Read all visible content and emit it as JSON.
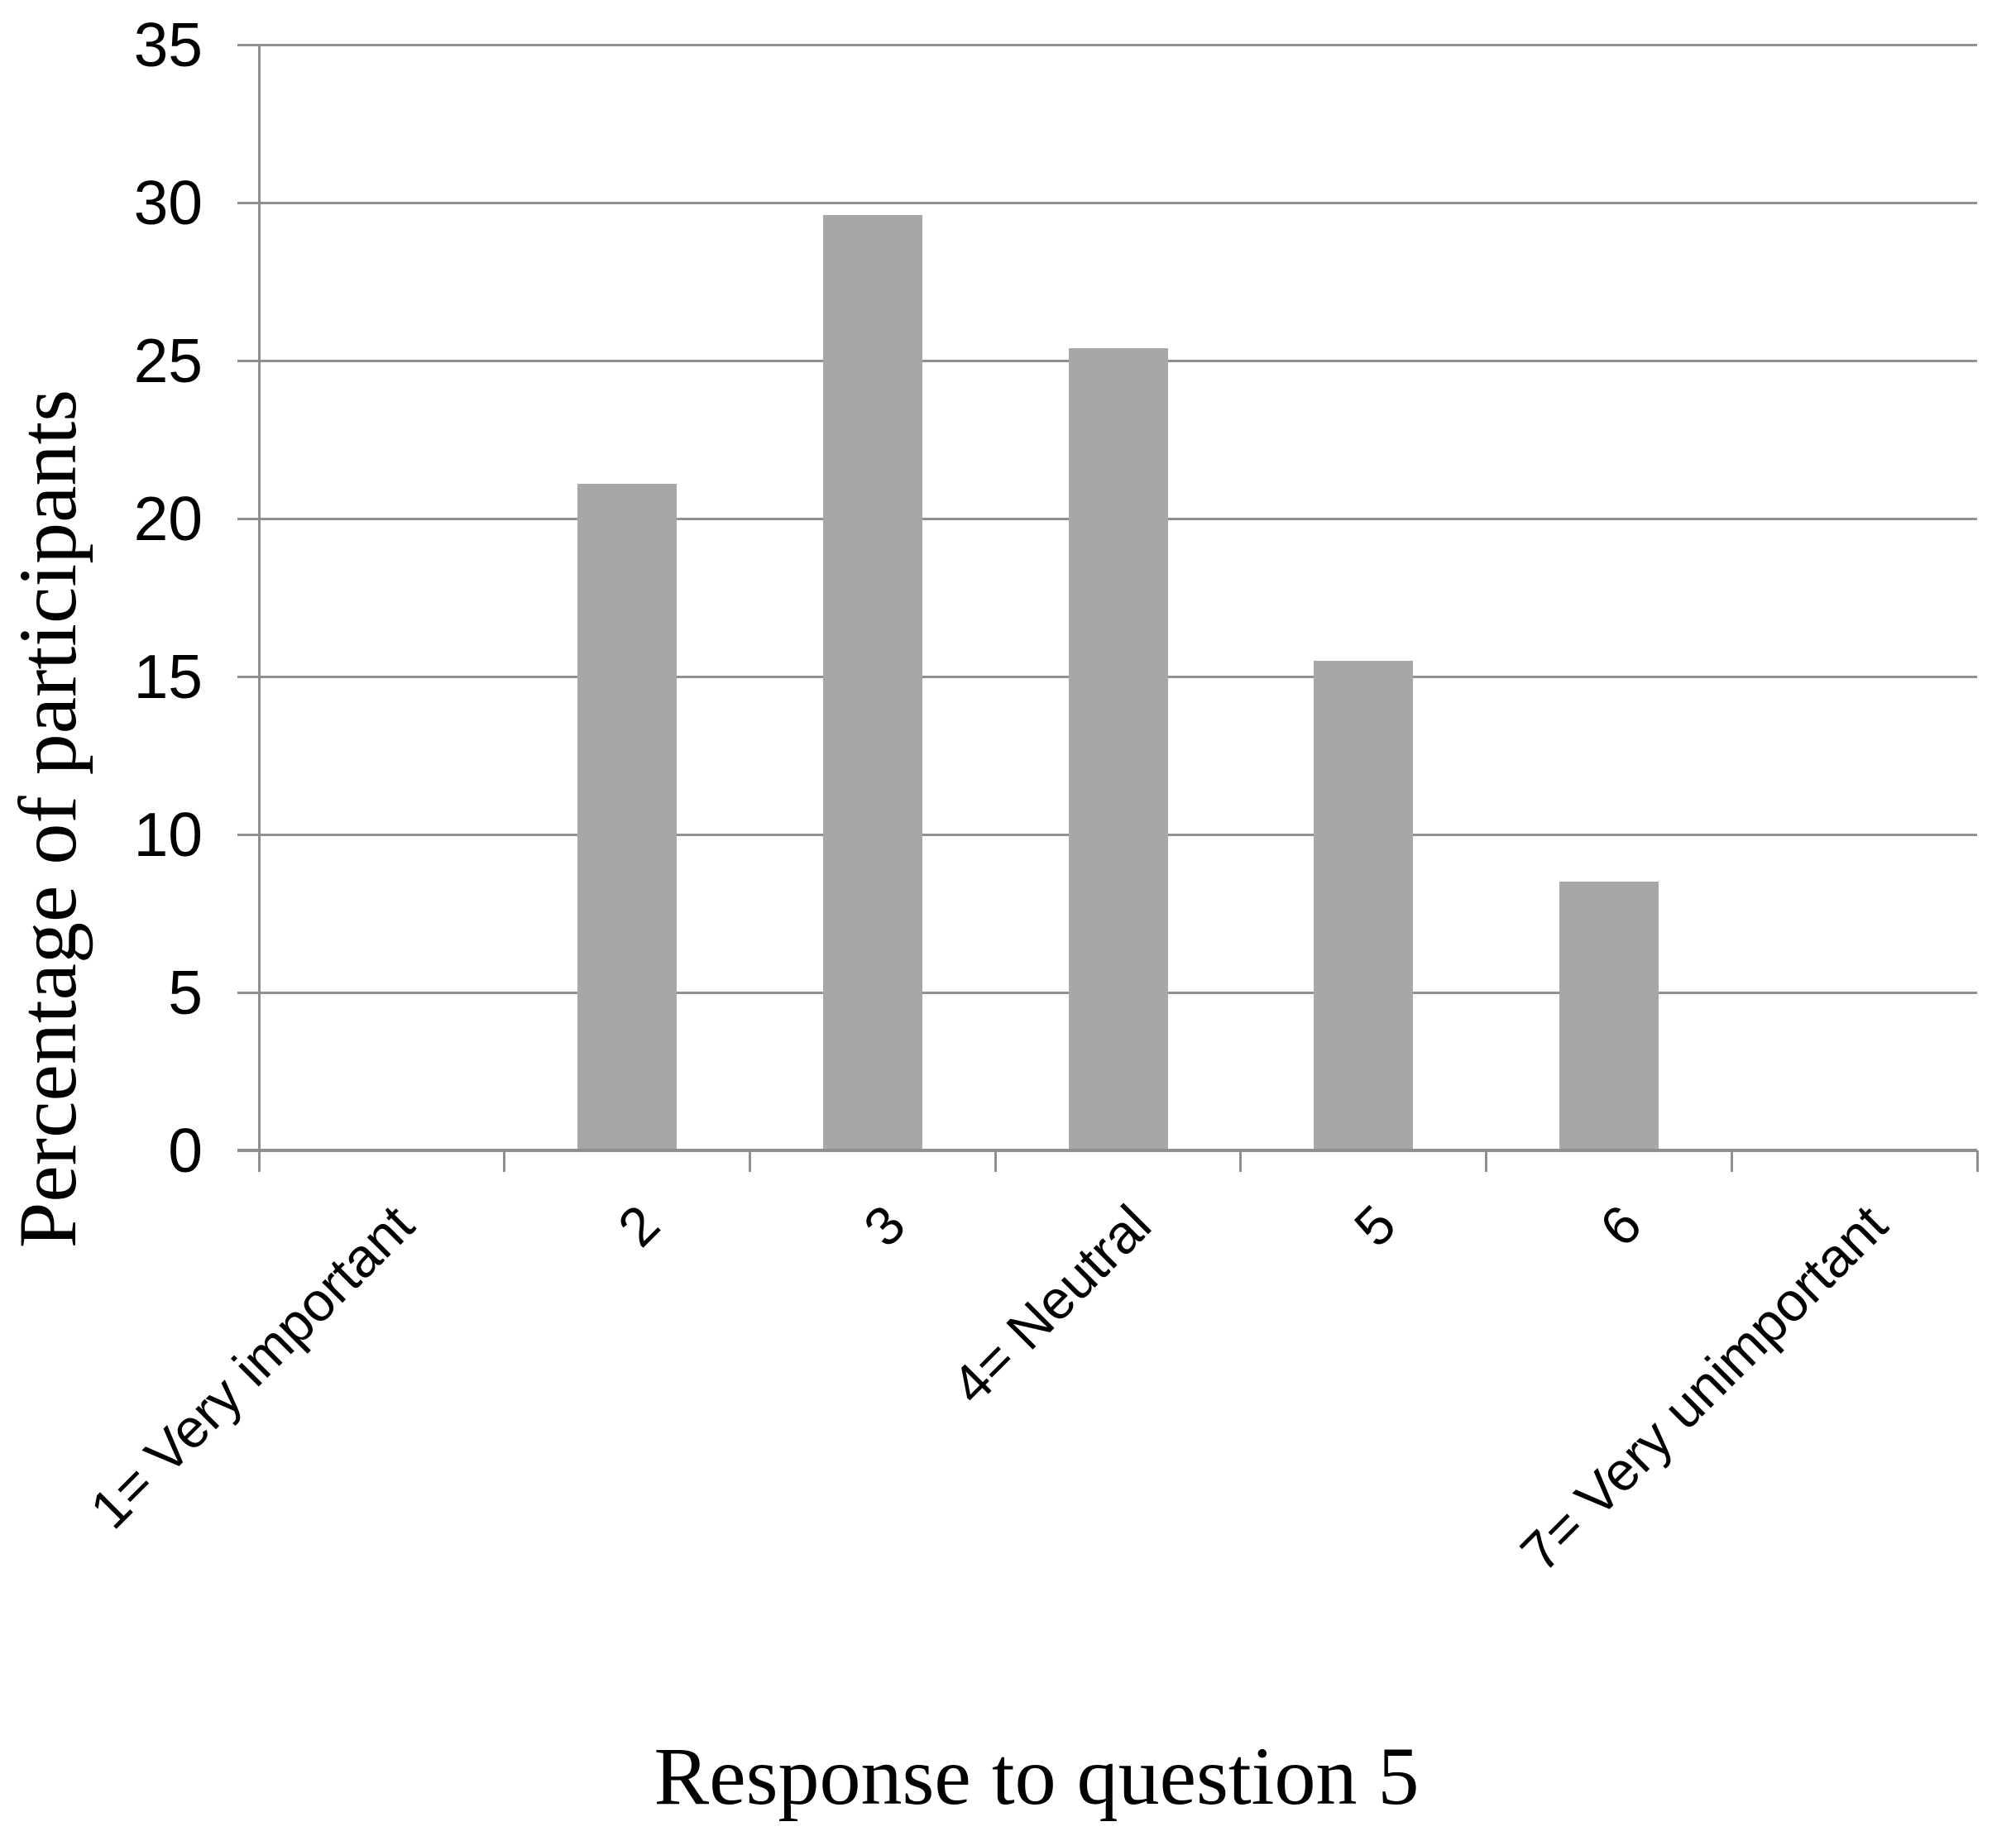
{
  "chart_data": {
    "type": "bar",
    "categories": [
      "1= Very important",
      "2",
      "3",
      "4= Neutral",
      "5",
      "6",
      "7= Very unimportant"
    ],
    "values": [
      0,
      21.1,
      29.6,
      25.4,
      15.5,
      8.5,
      0
    ],
    "xlabel": "Response to question 5",
    "ylabel": "Percentage of participants",
    "ylim": [
      0,
      35
    ],
    "ytick_step": 5,
    "ytick_labels": [
      "0",
      "5",
      "10",
      "15",
      "20",
      "25",
      "30",
      "35"
    ],
    "grid": "horizontal",
    "legend": "none",
    "x_label_rotation_deg": 45,
    "colors": {
      "bar_fill": "#a7a7a7",
      "axis_line": "#8f8f8f",
      "gridline": "#919191",
      "text": "#000000",
      "background": "#ffffff"
    }
  }
}
